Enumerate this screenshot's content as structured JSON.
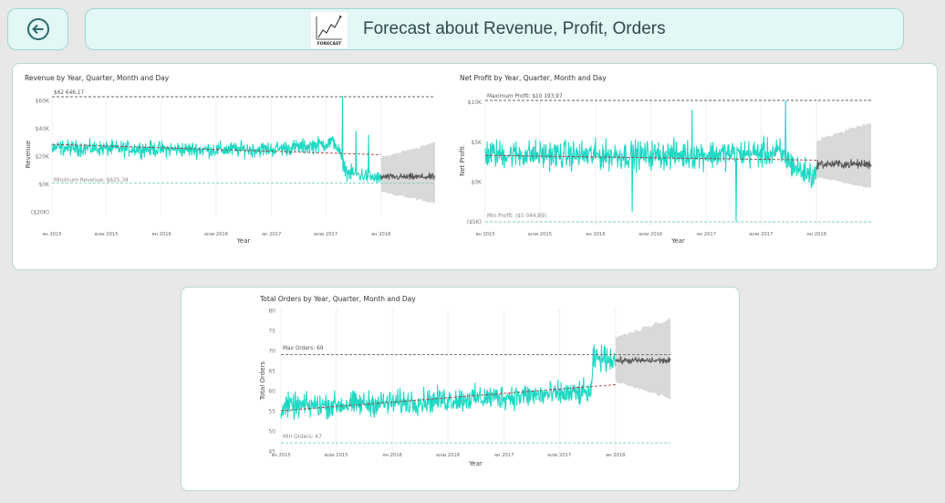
{
  "header": {
    "title": "Forecast about Revenue, Profit, Orders",
    "logo_text": "FORECAST",
    "back_icon": "arrow-left-circle-icon"
  },
  "colors": {
    "series": "#1ed8c3",
    "forecast_line": "#555555",
    "forecast_band": "#d9d9d9",
    "trend_line": "#9b3d3d",
    "max_line": "#666666",
    "min_line": "#7ccfc6",
    "accent": "#2a6b6b"
  },
  "chart_data": [
    {
      "type": "line",
      "title": "Revenue by Year, Quarter, Month and Day",
      "xlabel": "Year",
      "ylabel": "Revenue",
      "x_ticks": [
        "ян 2015",
        "юли 2015",
        "ян 2016",
        "юли 2016",
        "ян 2017",
        "юли 2017",
        "ян 2018"
      ],
      "x_range": [
        "2015-01-01",
        "2018-06-30"
      ],
      "y_ticks": [
        "$60K",
        "$40K",
        "$20K",
        "$0K",
        "($20K)"
      ],
      "y_tick_values": [
        60000,
        40000,
        20000,
        0,
        -20000
      ],
      "ylim": [
        -20000,
        62646.17
      ],
      "max_label": "$62 646,17",
      "max_value": 62646.17,
      "min_label": "Minimum Revenue: $625,34",
      "min_value": 625.34,
      "trend": {
        "start": 28500,
        "end": 21000
      },
      "series_profile": [
        [
          "2015-01-01",
          26000
        ],
        [
          "2015-07-01",
          25500
        ],
        [
          "2016-01-01",
          25000
        ],
        [
          "2016-07-01",
          24500
        ],
        [
          "2017-01-01",
          25000
        ],
        [
          "2017-05-01",
          27000
        ],
        [
          "2017-08-01",
          30000
        ],
        [
          "2017-09-10",
          8000
        ],
        [
          "2017-11-15",
          6000
        ],
        [
          "2017-12-31",
          3000
        ]
      ],
      "noise": 8000,
      "spikes": [
        [
          "2017-08-25",
          62646
        ],
        [
          "2017-10-10",
          38000
        ],
        [
          "2017-11-20",
          35000
        ]
      ],
      "forecast": {
        "start": "2018-01-01",
        "end": "2018-06-30",
        "mid": 5000,
        "band_lo": -14000,
        "band_hi": 30000,
        "noise": 3500
      }
    },
    {
      "type": "line",
      "title": "Net Profit by Year, Quarter, Month and Day",
      "xlabel": "Year",
      "ylabel": "Net Profit",
      "x_ticks": [
        "ян 2015",
        "юли 2015",
        "ян 2016",
        "юли 2016",
        "ян 2017",
        "юли 2017",
        "ян 2018"
      ],
      "x_range": [
        "2015-01-01",
        "2018-06-30"
      ],
      "y_ticks": [
        "$10K",
        "$5K",
        "$0K",
        "($5K)"
      ],
      "y_tick_values": [
        10000,
        5000,
        0,
        -5000
      ],
      "ylim": [
        -5044.89,
        10193.97
      ],
      "max_label": "Maximum Profit: $10 193,97",
      "max_value": 10193.97,
      "min_label": "Min Profit: ($5 044,89)",
      "min_value": -5044.89,
      "trend": {
        "start": 3300,
        "end": 2700
      },
      "series_profile": [
        [
          "2015-01-01",
          3500
        ],
        [
          "2016-01-01",
          3300
        ],
        [
          "2017-01-01",
          3400
        ],
        [
          "2017-09-01",
          3600
        ],
        [
          "2017-11-01",
          1500
        ],
        [
          "2017-12-31",
          600
        ]
      ],
      "noise": 2600,
      "spikes": [
        [
          "2017-09-20",
          10100
        ],
        [
          "2016-05-01",
          -3800
        ],
        [
          "2017-04-10",
          -5000
        ],
        [
          "2016-11-15",
          9000
        ]
      ],
      "forecast": {
        "start": "2018-01-01",
        "end": "2018-06-30",
        "mid": 2200,
        "band_lo": -800,
        "band_hi": 7500,
        "noise": 800
      }
    },
    {
      "type": "line",
      "title": "Total Orders by Year, Quarter, Month and Day",
      "xlabel": "Year",
      "ylabel": "Total Orders",
      "x_ticks": [
        "ян 2015",
        "юли 2015",
        "ян 2016",
        "юли 2016",
        "ян 2017",
        "юли 2017",
        "ян 2018"
      ],
      "x_range": [
        "2015-01-01",
        "2018-06-30"
      ],
      "y_ticks": [
        "80",
        "75",
        "70",
        "65",
        "60",
        "55",
        "50",
        "45"
      ],
      "y_tick_values": [
        80,
        75,
        70,
        65,
        60,
        55,
        50,
        45
      ],
      "ylim": [
        45,
        80
      ],
      "max_label": "Max Orders: 69",
      "max_value": 69,
      "min_label": "Min Orders: 47",
      "min_value": 47,
      "trend": {
        "start": 55,
        "end": 61.5
      },
      "series_profile": [
        [
          "2015-01-01",
          56
        ],
        [
          "2016-01-01",
          57
        ],
        [
          "2017-01-01",
          58.5
        ],
        [
          "2017-10-15",
          59.5
        ],
        [
          "2017-10-20",
          68
        ],
        [
          "2017-12-31",
          68
        ]
      ],
      "noise": 4.5,
      "spikes": [],
      "forecast": {
        "start": "2018-01-01",
        "end": "2018-06-30",
        "mid": 67.5,
        "band_lo": 58,
        "band_hi": 78,
        "noise": 1.2
      }
    }
  ]
}
